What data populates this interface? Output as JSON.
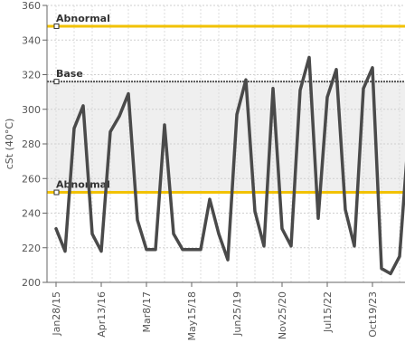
{
  "chart_data": {
    "type": "line",
    "title": "",
    "ylabel": "cSt (40°C)",
    "xlabel": "",
    "ylim": [
      200,
      360
    ],
    "yticks": [
      200,
      220,
      240,
      260,
      280,
      300,
      320,
      340,
      360
    ],
    "grid": true,
    "xtick_labels": [
      "Jan28/15",
      "Apr13/16",
      "Mar8/17",
      "May15/18",
      "Jun25/19",
      "Nov25/20",
      "Jul15/22",
      "Oct19/23"
    ],
    "reference_lines": [
      {
        "label": "Abnormal",
        "value": 348,
        "color": "#F2C200",
        "style": "solid"
      },
      {
        "label": "Base",
        "value": 316,
        "color": "#555555",
        "style": "dotted"
      },
      {
        "label": "Abnormal",
        "value": 252,
        "color": "#F2C200",
        "style": "solid"
      }
    ],
    "band": {
      "from": 252,
      "to": 316,
      "color": "#EFEFEF"
    },
    "series": [
      {
        "color": "#4a4a4a",
        "values": [
          231,
          218,
          289,
          302,
          228,
          218,
          287,
          296,
          309,
          236,
          219,
          219,
          291,
          228,
          219,
          219,
          219,
          248,
          228,
          213,
          297,
          317,
          241,
          221,
          312,
          231,
          221,
          311,
          330,
          237,
          307,
          323,
          242,
          221,
          312,
          324,
          208,
          205,
          215,
          286
        ]
      }
    ]
  }
}
